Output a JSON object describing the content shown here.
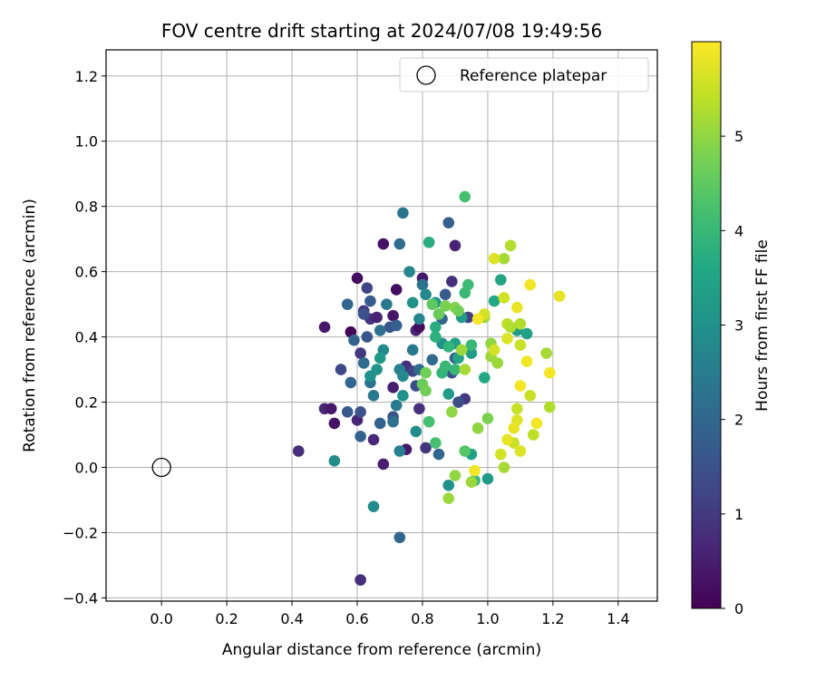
{
  "chart_data": {
    "type": "scatter",
    "title": "FOV centre drift starting at 2024/07/08 19:49:56",
    "xlabel": "Angular distance from reference (arcmin)",
    "ylabel": "Rotation from reference (arcmin)",
    "xlim": [
      -0.17,
      1.52
    ],
    "ylim": [
      -0.41,
      1.28
    ],
    "xticks": [
      0.0,
      0.2,
      0.4,
      0.6,
      0.8,
      1.0,
      1.2,
      1.4
    ],
    "xtick_labels": [
      "0.0",
      "0.2",
      "0.4",
      "0.6",
      "0.8",
      "1.0",
      "1.2",
      "1.4"
    ],
    "yticks": [
      -0.4,
      -0.2,
      0.0,
      0.2,
      0.4,
      0.6,
      0.8,
      1.0,
      1.2
    ],
    "ytick_labels": [
      "−0.4",
      "−0.2",
      "0.0",
      "0.2",
      "0.4",
      "0.6",
      "0.8",
      "1.0",
      "1.2"
    ],
    "grid": true,
    "legend": {
      "placement": "top-right",
      "entries": [
        "Reference platepar"
      ]
    },
    "reference_point": {
      "name": "Reference platepar",
      "x": 0.0,
      "y": 0.0,
      "marker": "open-circle"
    },
    "colorbar": {
      "label": "Hours from first FF file",
      "colormap": "viridis",
      "range": [
        0,
        6.0
      ],
      "ticks": [
        0,
        1,
        2,
        3,
        4,
        5
      ],
      "tick_labels": [
        "0",
        "1",
        "2",
        "3",
        "4",
        "5"
      ]
    },
    "point_columns": [
      "x",
      "y",
      "hours"
    ],
    "points": [
      [
        0.42,
        0.05,
        0.8
      ],
      [
        0.5,
        0.18,
        0.6
      ],
      [
        0.52,
        0.18,
        0.4
      ],
      [
        0.53,
        0.135,
        0.3
      ],
      [
        0.5,
        0.43,
        0.4
      ],
      [
        0.58,
        0.415,
        0.1
      ],
      [
        0.6,
        0.58,
        0.2
      ],
      [
        0.61,
        0.35,
        1.0
      ],
      [
        0.61,
        -0.345,
        0.8
      ],
      [
        0.6,
        0.145,
        0.6
      ],
      [
        0.63,
        0.55,
        1.2
      ],
      [
        0.62,
        0.48,
        1.0
      ],
      [
        0.64,
        0.455,
        0.9
      ],
      [
        0.66,
        0.46,
        0.6
      ],
      [
        0.65,
        0.085,
        0.7
      ],
      [
        0.68,
        0.685,
        0.3
      ],
      [
        0.68,
        0.01,
        0.5
      ],
      [
        0.71,
        0.245,
        0.5
      ],
      [
        0.71,
        0.465,
        0.4
      ],
      [
        0.72,
        0.545,
        0.2
      ],
      [
        0.75,
        0.055,
        0.4
      ],
      [
        0.75,
        0.31,
        0.8
      ],
      [
        0.77,
        0.295,
        1.2
      ],
      [
        0.78,
        0.42,
        0.6
      ],
      [
        0.79,
        0.43,
        0.2
      ],
      [
        0.8,
        0.58,
        0.4
      ],
      [
        0.81,
        0.06,
        0.9
      ],
      [
        0.79,
        0.18,
        0.8
      ],
      [
        0.9,
        0.68,
        0.6
      ],
      [
        0.89,
        0.57,
        0.8
      ],
      [
        0.93,
        0.21,
        1.0
      ],
      [
        0.94,
        0.46,
        1.1
      ],
      [
        0.62,
        0.47,
        1.5
      ],
      [
        0.63,
        0.4,
        1.6
      ],
      [
        0.64,
        0.51,
        1.7
      ],
      [
        0.7,
        0.43,
        1.6
      ],
      [
        0.72,
        0.435,
        1.8
      ],
      [
        0.55,
        0.3,
        1.3
      ],
      [
        0.57,
        0.17,
        1.7
      ],
      [
        0.59,
        0.39,
        1.9
      ],
      [
        0.61,
        0.17,
        1.5
      ],
      [
        0.67,
        0.135,
        1.9
      ],
      [
        0.71,
        0.155,
        1.6
      ],
      [
        0.73,
        -0.215,
        2.0
      ],
      [
        0.74,
        0.78,
        2.3
      ],
      [
        0.73,
        0.685,
        2.1
      ],
      [
        0.57,
        0.5,
        2.0
      ],
      [
        0.58,
        0.26,
        2.0
      ],
      [
        0.61,
        0.095,
        1.9
      ],
      [
        0.62,
        0.32,
        2.1
      ],
      [
        0.64,
        0.26,
        2.3
      ],
      [
        0.65,
        0.22,
        2.4
      ],
      [
        0.67,
        0.42,
        2.2
      ],
      [
        0.69,
        0.5,
        2.4
      ],
      [
        0.71,
        0.14,
        2.2
      ],
      [
        0.72,
        0.19,
        2.5
      ],
      [
        0.73,
        0.3,
        2.6
      ],
      [
        0.74,
        0.28,
        2.8
      ],
      [
        0.77,
        0.36,
        2.4
      ],
      [
        0.78,
        0.25,
        1.4
      ],
      [
        0.79,
        0.3,
        2.1
      ],
      [
        0.8,
        0.56,
        2.3
      ],
      [
        0.83,
        0.33,
        2.1
      ],
      [
        0.85,
        0.04,
        2.0
      ],
      [
        0.86,
        0.455,
        2.0
      ],
      [
        0.87,
        0.53,
        1.7
      ],
      [
        0.88,
        0.75,
        1.8
      ],
      [
        0.89,
        0.29,
        1.5
      ],
      [
        0.9,
        0.335,
        1.8
      ],
      [
        0.91,
        0.2,
        1.4
      ],
      [
        0.76,
        0.6,
        2.7
      ],
      [
        0.78,
        0.11,
        2.9
      ],
      [
        0.74,
        0.22,
        3.0
      ],
      [
        0.68,
        0.36,
        2.8
      ],
      [
        0.67,
        0.335,
        3.2
      ],
      [
        0.66,
        0.3,
        3.1
      ],
      [
        0.65,
        -0.12,
        2.9
      ],
      [
        0.53,
        0.02,
        2.9
      ],
      [
        0.64,
        0.28,
        3.0
      ],
      [
        0.73,
        0.05,
        2.6
      ],
      [
        0.77,
        0.505,
        3.0
      ],
      [
        0.79,
        0.455,
        2.7
      ],
      [
        0.81,
        0.53,
        2.8
      ],
      [
        0.84,
        0.505,
        3.1
      ],
      [
        0.86,
        0.38,
        3.0
      ],
      [
        0.88,
        0.225,
        3.3
      ],
      [
        0.88,
        -0.055,
        3.0
      ],
      [
        0.9,
        0.38,
        3.4
      ],
      [
        0.91,
        0.335,
        3.5
      ],
      [
        0.92,
        0.46,
        3.3
      ],
      [
        0.95,
        0.35,
        3.3
      ],
      [
        0.95,
        0.04,
        3.4
      ],
      [
        0.99,
        0.275,
        3.6
      ],
      [
        1.0,
        -0.035,
        3.2
      ],
      [
        1.02,
        0.51,
        3.6
      ],
      [
        1.04,
        0.575,
        3.5
      ],
      [
        1.09,
        0.42,
        3.3
      ],
      [
        1.12,
        0.41,
        3.4
      ],
      [
        0.82,
        0.69,
        3.7
      ],
      [
        0.84,
        0.43,
        3.7
      ],
      [
        0.84,
        0.4,
        3.8
      ],
      [
        0.86,
        0.29,
        3.9
      ],
      [
        0.87,
        0.31,
        4.0
      ],
      [
        0.88,
        0.37,
        3.9
      ],
      [
        0.9,
        0.3,
        4.0
      ],
      [
        0.93,
        0.535,
        4.0
      ],
      [
        0.94,
        0.56,
        4.1
      ],
      [
        0.95,
        0.375,
        4.0
      ],
      [
        0.96,
        -0.04,
        4.0
      ],
      [
        0.93,
        0.83,
        4.2
      ],
      [
        0.93,
        0.05,
        4.4
      ],
      [
        0.84,
        0.075,
        4.2
      ],
      [
        0.82,
        0.14,
        4.2
      ],
      [
        0.8,
        0.255,
        4.6
      ],
      [
        0.83,
        0.5,
        4.5
      ],
      [
        0.85,
        0.47,
        4.6
      ],
      [
        0.87,
        0.495,
        4.8
      ],
      [
        0.9,
        0.49,
        4.9
      ],
      [
        0.91,
        0.48,
        4.7
      ],
      [
        0.81,
        0.29,
        4.7
      ],
      [
        0.81,
        0.235,
        4.7
      ],
      [
        0.89,
        0.17,
        5.0
      ],
      [
        0.9,
        -0.025,
        5.0
      ],
      [
        0.88,
        -0.095,
        5.1
      ],
      [
        0.92,
        0.36,
        5.1
      ],
      [
        0.93,
        0.3,
        5.2
      ],
      [
        0.95,
        -0.045,
        5.1
      ],
      [
        0.97,
        0.12,
        5.0
      ],
      [
        0.99,
        0.46,
        5.1
      ],
      [
        1.0,
        0.15,
        4.8
      ],
      [
        1.01,
        0.34,
        5.1
      ],
      [
        1.01,
        0.38,
        5.0
      ],
      [
        1.03,
        0.32,
        5.1
      ],
      [
        1.05,
        0.64,
        5.2
      ],
      [
        1.05,
        0.0,
        5.2
      ],
      [
        1.06,
        0.44,
        5.4
      ],
      [
        1.07,
        0.68,
        5.3
      ],
      [
        1.07,
        0.43,
        5.3
      ],
      [
        1.08,
        0.075,
        5.5
      ],
      [
        1.09,
        0.18,
        5.5
      ],
      [
        1.1,
        0.44,
        5.3
      ],
      [
        1.1,
        0.375,
        5.5
      ],
      [
        1.13,
        0.22,
        5.5
      ],
      [
        1.14,
        0.1,
        5.4
      ],
      [
        1.18,
        0.35,
        5.2
      ],
      [
        1.19,
        0.185,
        5.3
      ],
      [
        0.99,
        0.47,
        5.6
      ],
      [
        1.02,
        0.36,
        5.6
      ],
      [
        1.02,
        0.64,
        5.7
      ],
      [
        1.04,
        0.04,
        5.6
      ],
      [
        1.05,
        0.52,
        5.6
      ],
      [
        1.06,
        0.395,
        5.7
      ],
      [
        1.06,
        0.085,
        5.8
      ],
      [
        1.09,
        0.49,
        5.8
      ],
      [
        1.09,
        0.145,
        5.7
      ],
      [
        1.1,
        0.25,
        5.9
      ],
      [
        1.1,
        0.05,
        5.7
      ],
      [
        1.13,
        0.56,
        5.9
      ],
      [
        1.15,
        0.135,
        5.9
      ],
      [
        1.19,
        0.29,
        5.9
      ],
      [
        1.22,
        0.525,
        5.8
      ],
      [
        1.12,
        0.325,
        5.9
      ],
      [
        0.97,
        0.455,
        5.9
      ],
      [
        0.96,
        -0.01,
        5.9
      ],
      [
        1.08,
        0.12,
        5.8
      ]
    ]
  }
}
